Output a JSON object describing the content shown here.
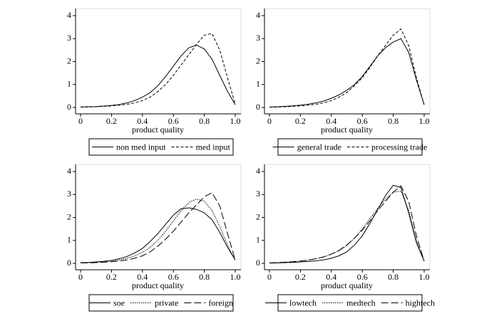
{
  "chart_data": [
    {
      "type": "line",
      "x_label": "product quality",
      "x": [
        0,
        0.05,
        0.1,
        0.15,
        0.2,
        0.25,
        0.3,
        0.35,
        0.4,
        0.45,
        0.5,
        0.55,
        0.6,
        0.65,
        0.7,
        0.75,
        0.8,
        0.85,
        0.9,
        0.95,
        1.0
      ],
      "series": [
        {
          "name": "non med input",
          "color": "#000000",
          "dash": "solid",
          "values": [
            0.02,
            0.03,
            0.04,
            0.06,
            0.09,
            0.13,
            0.2,
            0.3,
            0.45,
            0.65,
            0.95,
            1.35,
            1.8,
            2.25,
            2.6,
            2.72,
            2.55,
            2.1,
            1.4,
            0.7,
            0.12
          ]
        },
        {
          "name": "med input",
          "color": "#000000",
          "dash": "dash",
          "values": [
            0.02,
            0.02,
            0.03,
            0.05,
            0.07,
            0.1,
            0.14,
            0.2,
            0.3,
            0.45,
            0.7,
            1.0,
            1.4,
            1.85,
            2.3,
            2.75,
            3.15,
            3.22,
            2.5,
            1.3,
            0.15
          ]
        }
      ],
      "xlim": [
        0,
        1
      ],
      "ylim": [
        0,
        4
      ],
      "xticks": [
        0,
        0.2,
        0.4,
        0.6,
        0.8,
        {
          "value": 1,
          "label": "1.0"
        }
      ],
      "yticks": [
        0,
        1,
        2,
        3,
        4
      ]
    },
    {
      "type": "line",
      "x_label": "product quality",
      "x": [
        0,
        0.05,
        0.1,
        0.15,
        0.2,
        0.25,
        0.3,
        0.35,
        0.4,
        0.45,
        0.5,
        0.55,
        0.6,
        0.65,
        0.7,
        0.75,
        0.8,
        0.85,
        0.9,
        0.95,
        1.0
      ],
      "series": [
        {
          "name": "general trade",
          "color": "#000000",
          "dash": "solid",
          "values": [
            0.02,
            0.03,
            0.05,
            0.07,
            0.1,
            0.14,
            0.2,
            0.28,
            0.4,
            0.55,
            0.75,
            1.0,
            1.35,
            1.8,
            2.25,
            2.6,
            2.85,
            3.0,
            2.4,
            1.2,
            0.12
          ]
        },
        {
          "name": "processing trade",
          "color": "#000000",
          "dash": "dash",
          "values": [
            0.01,
            0.02,
            0.03,
            0.05,
            0.07,
            0.1,
            0.14,
            0.2,
            0.3,
            0.45,
            0.65,
            0.95,
            1.3,
            1.75,
            2.25,
            2.7,
            3.15,
            3.42,
            2.7,
            1.3,
            0.12
          ]
        }
      ],
      "xlim": [
        0,
        1
      ],
      "ylim": [
        0,
        4
      ],
      "xticks": [
        0,
        0.2,
        0.4,
        0.6,
        0.8,
        {
          "value": 1,
          "label": "1.0"
        }
      ],
      "yticks": [
        0,
        1,
        2,
        3,
        4
      ]
    },
    {
      "type": "line",
      "x_label": "product quality",
      "x": [
        0,
        0.05,
        0.1,
        0.15,
        0.2,
        0.25,
        0.3,
        0.35,
        0.4,
        0.45,
        0.5,
        0.55,
        0.6,
        0.65,
        0.7,
        0.75,
        0.8,
        0.85,
        0.9,
        0.95,
        1.0
      ],
      "series": [
        {
          "name": "soe",
          "color": "#000000",
          "dash": "solid",
          "values": [
            0.03,
            0.04,
            0.06,
            0.09,
            0.13,
            0.2,
            0.3,
            0.45,
            0.65,
            0.95,
            1.3,
            1.7,
            2.1,
            2.38,
            2.42,
            2.35,
            2.2,
            1.9,
            1.35,
            0.7,
            0.15
          ]
        },
        {
          "name": "private",
          "color": "#000000",
          "dash": "dot",
          "values": [
            0.02,
            0.03,
            0.05,
            0.07,
            0.1,
            0.15,
            0.22,
            0.32,
            0.48,
            0.7,
            1.0,
            1.4,
            1.85,
            2.3,
            2.65,
            2.8,
            2.7,
            2.3,
            1.6,
            0.8,
            0.12
          ]
        },
        {
          "name": "foreign",
          "color": "#000000",
          "dash": "longdash",
          "values": [
            0.02,
            0.02,
            0.03,
            0.05,
            0.07,
            0.1,
            0.15,
            0.22,
            0.33,
            0.5,
            0.75,
            1.05,
            1.4,
            1.8,
            2.2,
            2.55,
            2.9,
            3.08,
            2.5,
            1.3,
            0.15
          ]
        }
      ],
      "xlim": [
        0,
        1
      ],
      "ylim": [
        0,
        4
      ],
      "xticks": [
        0,
        0.2,
        0.4,
        0.6,
        0.8,
        {
          "value": 1,
          "label": "1.0"
        }
      ],
      "yticks": [
        0,
        1,
        2,
        3,
        4
      ]
    },
    {
      "type": "line",
      "x_label": "product quality",
      "x": [
        0,
        0.05,
        0.1,
        0.15,
        0.2,
        0.25,
        0.3,
        0.35,
        0.4,
        0.45,
        0.5,
        0.55,
        0.6,
        0.65,
        0.7,
        0.75,
        0.8,
        0.85,
        0.9,
        0.95,
        1.0
      ],
      "series": [
        {
          "name": "lowtech",
          "color": "#000000",
          "dash": "solid",
          "values": [
            0.01,
            0.02,
            0.03,
            0.04,
            0.06,
            0.08,
            0.11,
            0.15,
            0.22,
            0.33,
            0.5,
            0.8,
            1.2,
            1.75,
            2.35,
            2.95,
            3.4,
            3.3,
            2.2,
            0.9,
            0.1
          ]
        },
        {
          "name": "medtech",
          "color": "#000000",
          "dash": "dot",
          "values": [
            0.02,
            0.03,
            0.05,
            0.07,
            0.1,
            0.14,
            0.2,
            0.28,
            0.4,
            0.55,
            0.78,
            1.1,
            1.5,
            1.95,
            2.4,
            2.8,
            3.1,
            3.15,
            2.3,
            1.0,
            0.1
          ]
        },
        {
          "name": "hightech",
          "color": "#000000",
          "dash": "longdash",
          "values": [
            0.02,
            0.03,
            0.05,
            0.07,
            0.1,
            0.14,
            0.2,
            0.28,
            0.4,
            0.57,
            0.8,
            1.1,
            1.45,
            1.85,
            2.3,
            2.7,
            3.1,
            3.38,
            2.7,
            1.2,
            0.1
          ]
        }
      ],
      "xlim": [
        0,
        1
      ],
      "ylim": [
        0,
        4
      ],
      "xticks": [
        0,
        0.2,
        0.4,
        0.6,
        0.8,
        {
          "value": 1,
          "label": "1.0"
        }
      ],
      "yticks": [
        0,
        1,
        2,
        3,
        4
      ]
    }
  ]
}
